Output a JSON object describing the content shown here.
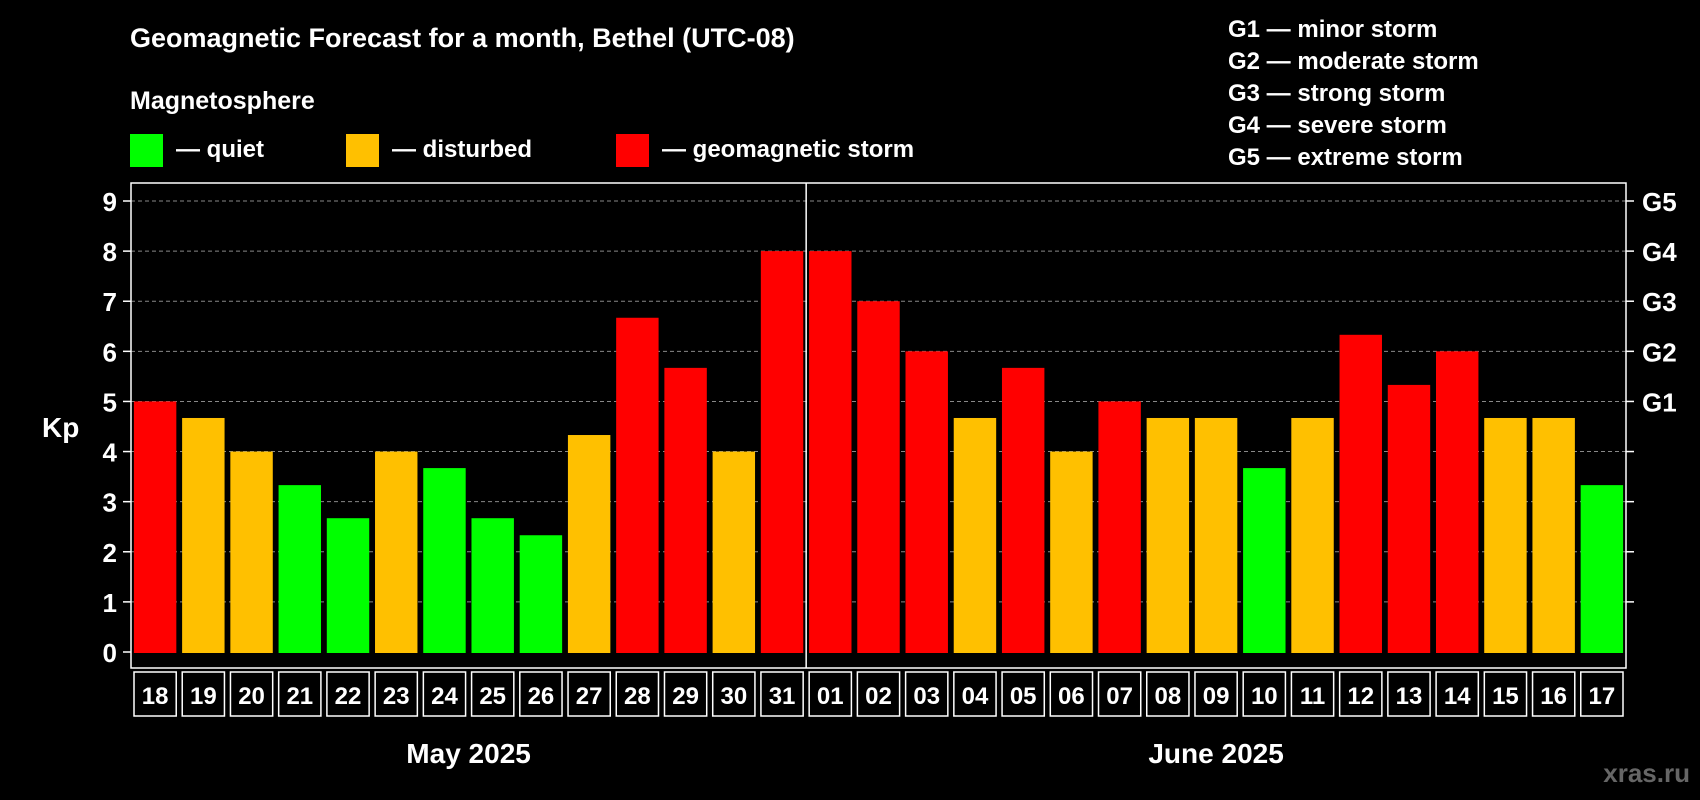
{
  "title": "Geomagnetic Forecast for a month, Bethel (UTC-08)",
  "legend": {
    "heading": "Magnetosphere",
    "items": [
      {
        "label": "— quiet",
        "color": "#00ff00"
      },
      {
        "label": "— disturbed",
        "color": "#ffc000"
      },
      {
        "label": "— geomagnetic storm",
        "color": "#ff0000"
      }
    ]
  },
  "storm_scale": [
    "G1 — minor storm",
    "G2 — moderate storm",
    "G3 — strong storm",
    "G4 — severe storm",
    "G5 — extreme storm"
  ],
  "watermark": "xras.ru",
  "chart_data": {
    "type": "bar",
    "ylabel": "Kp",
    "ylim": [
      0,
      9
    ],
    "yticks": [
      0,
      1,
      2,
      3,
      4,
      5,
      6,
      7,
      8,
      9
    ],
    "right_ticks": [
      {
        "value": 5,
        "label": "G1"
      },
      {
        "value": 6,
        "label": "G2"
      },
      {
        "value": 7,
        "label": "G3"
      },
      {
        "value": 8,
        "label": "G4"
      },
      {
        "value": 9,
        "label": "G5"
      }
    ],
    "grid": true,
    "categories": [
      "18",
      "19",
      "20",
      "21",
      "22",
      "23",
      "24",
      "25",
      "26",
      "27",
      "28",
      "29",
      "30",
      "31",
      "01",
      "02",
      "03",
      "04",
      "05",
      "06",
      "07",
      "08",
      "09",
      "10",
      "11",
      "12",
      "13",
      "14",
      "15",
      "16",
      "17"
    ],
    "values": [
      5.0,
      4.67,
      4.0,
      3.33,
      2.67,
      4.0,
      3.67,
      2.67,
      2.33,
      4.33,
      6.67,
      5.67,
      4.0,
      8.0,
      8.0,
      7.0,
      6.0,
      4.67,
      5.67,
      4.0,
      5.0,
      4.67,
      4.67,
      3.67,
      4.67,
      6.33,
      5.33,
      6.0,
      4.67,
      4.67,
      3.33
    ],
    "levels": [
      "storm",
      "disturbed",
      "disturbed",
      "quiet",
      "quiet",
      "disturbed",
      "quiet",
      "quiet",
      "quiet",
      "disturbed",
      "storm",
      "storm",
      "disturbed",
      "storm",
      "storm",
      "storm",
      "storm",
      "disturbed",
      "storm",
      "disturbed",
      "storm",
      "disturbed",
      "disturbed",
      "quiet",
      "disturbed",
      "storm",
      "storm",
      "storm",
      "disturbed",
      "disturbed",
      "quiet"
    ],
    "level_colors": {
      "quiet": "#00ff00",
      "disturbed": "#ffc000",
      "storm": "#ff0000"
    },
    "months": [
      {
        "label": "May 2025",
        "start": 0,
        "count": 14
      },
      {
        "label": "June 2025",
        "start": 14,
        "count": 17
      }
    ]
  }
}
